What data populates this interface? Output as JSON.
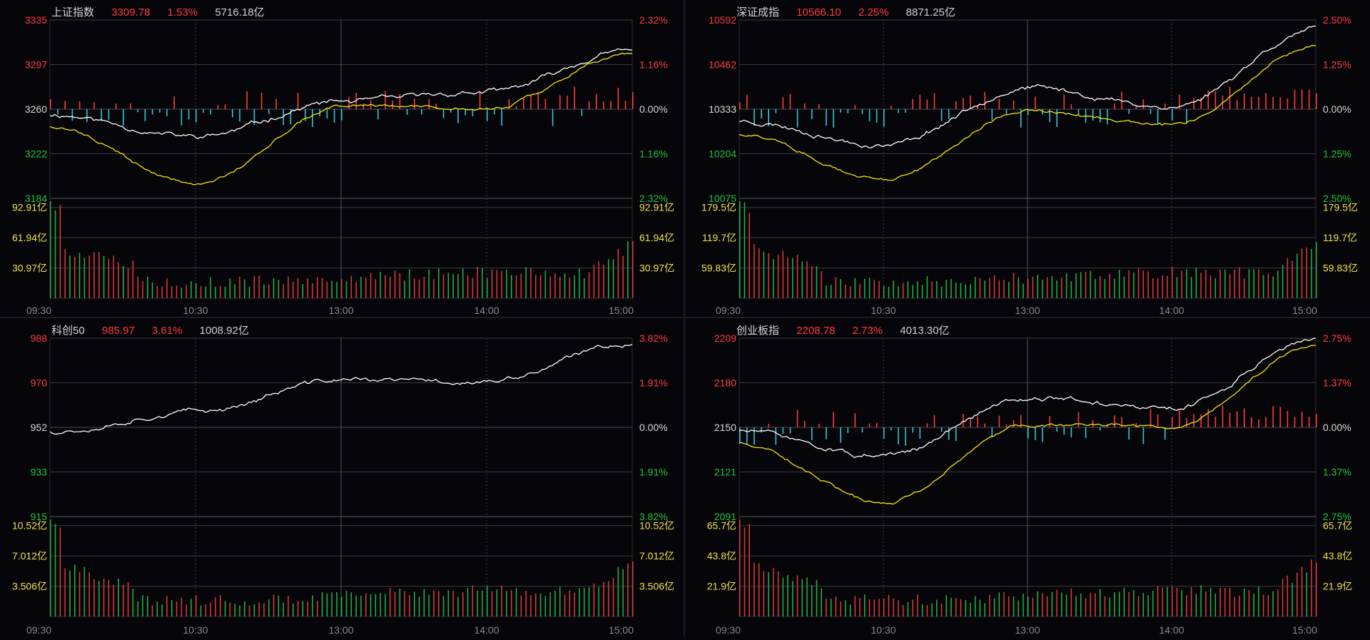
{
  "colors": {
    "up": "#ff3b3b",
    "down": "#34c7d4",
    "vol_up": "#e23a3a",
    "vol_down": "#1fb84a",
    "price_line": "#ffffff",
    "avg_line": "#f5e60c",
    "grid": "#3a3a44",
    "up_label": "#ff3b3b",
    "down_label": "#23c43a",
    "neutral_label": "#d8d8d8",
    "volume_label": "#f2e14c",
    "time_label": "#8a8a8a"
  },
  "panels": [
    {
      "name": "上证指数",
      "price": "3309.78",
      "pct": "1.53%",
      "amount": "5716.18亿",
      "price_axis": [
        "3335",
        "3297",
        "3260",
        "3222",
        "3184"
      ],
      "pct_axis": [
        "2.32%",
        "1.16%",
        "0.00%",
        "1.16%",
        "2.32%"
      ],
      "volume_axis": [
        "92.91亿",
        "61.94亿",
        "30.97亿"
      ],
      "time_axis": [
        "09:30",
        "10:30",
        "13:00",
        "14:00",
        "15:00"
      ],
      "has_avg_line": true,
      "has_bars": true
    },
    {
      "name": "深证成指",
      "price": "10566.10",
      "pct": "2.25%",
      "amount": "8871.25亿",
      "price_axis": [
        "10592",
        "10462",
        "10333",
        "10204",
        "10075"
      ],
      "pct_axis": [
        "2.50%",
        "1.25%",
        "0.00%",
        "1.25%",
        "2.50%"
      ],
      "volume_axis": [
        "179.5亿",
        "119.7亿",
        "59.83亿"
      ],
      "time_axis": [
        "09:30",
        "10:30",
        "13:00",
        "14:00",
        "15:00"
      ],
      "has_avg_line": true,
      "has_bars": true
    },
    {
      "name": "科创50",
      "price": "985.97",
      "pct": "3.61%",
      "amount": "1008.92亿",
      "price_axis": [
        "988",
        "970",
        "952",
        "933",
        "915"
      ],
      "pct_axis": [
        "3.82%",
        "1.91%",
        "0.00%",
        "1.91%",
        "3.82%"
      ],
      "volume_axis": [
        "10.52亿",
        "7.012亿",
        "3.506亿"
      ],
      "time_axis": [
        "09:30",
        "10:30",
        "13:00",
        "14:00",
        "15:00"
      ],
      "has_avg_line": false,
      "has_bars": false
    },
    {
      "name": "创业板指",
      "price": "2208.78",
      "pct": "2.73%",
      "amount": "4013.30亿",
      "price_axis": [
        "2209",
        "2180",
        "2150",
        "2121",
        "2091"
      ],
      "pct_axis": [
        "2.75%",
        "1.37%",
        "0.00%",
        "1.37%",
        "2.75%"
      ],
      "volume_axis": [
        "65.7亿",
        "43.8亿",
        "21.9亿"
      ],
      "time_axis": [
        "09:30",
        "10:30",
        "13:00",
        "14:00",
        "15:00"
      ],
      "has_avg_line": true,
      "has_bars": true
    }
  ],
  "chart_data": [
    {
      "type": "line",
      "title": "上证指数",
      "x": [
        "09:30",
        "10:30",
        "13:00",
        "14:00",
        "15:00"
      ],
      "ylim": [
        3184,
        3335
      ],
      "series": [
        {
          "name": "价格",
          "values": [
            3255,
            3236,
            3266,
            3274,
            3309
          ]
        },
        {
          "name": "均价",
          "values": [
            3245,
            3196,
            3262,
            3260,
            3307
          ]
        }
      ]
    },
    {
      "type": "line",
      "title": "深证成指",
      "x": [
        "09:30",
        "10:30",
        "13:00",
        "14:00",
        "15:00"
      ],
      "ylim": [
        10075,
        10592
      ],
      "series": [
        {
          "name": "价格",
          "values": [
            10300,
            10230,
            10395,
            10340,
            10566
          ]
        },
        {
          "name": "均价",
          "values": [
            10260,
            10130,
            10330,
            10290,
            10515
          ]
        }
      ]
    },
    {
      "type": "line",
      "title": "科创50",
      "x": [
        "09:30",
        "10:30",
        "13:00",
        "14:00",
        "15:00"
      ],
      "ylim": [
        915,
        988
      ],
      "series": [
        {
          "name": "价格",
          "values": [
            950,
            958,
            971,
            970,
            986
          ]
        }
      ]
    },
    {
      "type": "line",
      "title": "创业板指",
      "x": [
        "09:30",
        "10:30",
        "13:00",
        "14:00",
        "15:00"
      ],
      "ylim": [
        2091,
        2209
      ],
      "series": [
        {
          "name": "价格",
          "values": [
            2148,
            2130,
            2170,
            2162,
            2209
          ]
        },
        {
          "name": "均价",
          "values": [
            2140,
            2100,
            2152,
            2150,
            2204
          ]
        }
      ]
    }
  ]
}
